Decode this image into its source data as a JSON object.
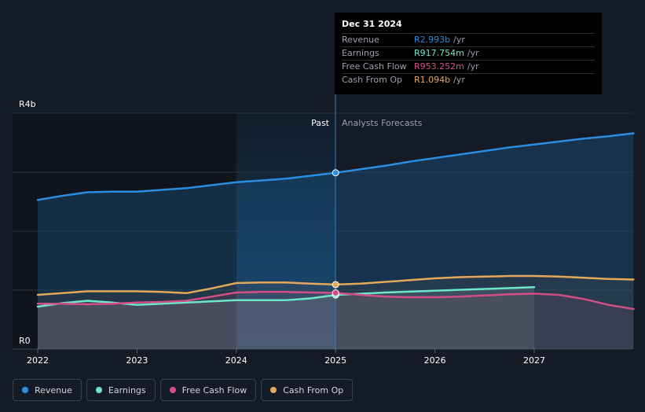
{
  "colors": {
    "revenue": "#2b8de0",
    "earnings": "#6ee6c8",
    "fcf": "#d24f86",
    "cfo": "#e4a85a"
  },
  "labels": {
    "y_top": "R4b",
    "y_bottom": "R0",
    "past": "Past",
    "forecast": "Analysts Forecasts"
  },
  "tooltip": {
    "date": "Dec 31 2024",
    "rows": [
      {
        "label": "Revenue",
        "value": "R2.993b",
        "unit": "/yr",
        "key": "revenue"
      },
      {
        "label": "Earnings",
        "value": "R917.754m",
        "unit": "/yr",
        "key": "earnings"
      },
      {
        "label": "Free Cash Flow",
        "value": "R953.252m",
        "unit": "/yr",
        "key": "fcf"
      },
      {
        "label": "Cash From Op",
        "value": "R1.094b",
        "unit": "/yr",
        "key": "cfo"
      }
    ]
  },
  "legend": [
    {
      "label": "Revenue",
      "key": "revenue"
    },
    {
      "label": "Earnings",
      "key": "earnings"
    },
    {
      "label": "Free Cash Flow",
      "key": "fcf"
    },
    {
      "label": "Cash From Op",
      "key": "cfo"
    }
  ],
  "chart_data": {
    "type": "area",
    "x_ticks": [
      "2022",
      "2023",
      "2024",
      "2025",
      "2026",
      "2027"
    ],
    "ylim": [
      0,
      4
    ],
    "y_unit": "R billion",
    "past_end": 2025.0,
    "highlight_start": 2024.0,
    "grid": true,
    "series": [
      {
        "name": "Revenue",
        "key": "revenue",
        "points": [
          [
            2022.0,
            2.53
          ],
          [
            2022.25,
            2.6
          ],
          [
            2022.5,
            2.66
          ],
          [
            2022.75,
            2.67
          ],
          [
            2023.0,
            2.67
          ],
          [
            2023.25,
            2.7
          ],
          [
            2023.5,
            2.73
          ],
          [
            2023.75,
            2.78
          ],
          [
            2024.0,
            2.83
          ],
          [
            2024.25,
            2.86
          ],
          [
            2024.5,
            2.89
          ],
          [
            2024.75,
            2.94
          ],
          [
            2025.0,
            2.99
          ],
          [
            2025.25,
            3.05
          ],
          [
            2025.5,
            3.11
          ],
          [
            2025.75,
            3.18
          ],
          [
            2026.0,
            3.24
          ],
          [
            2026.25,
            3.3
          ],
          [
            2026.5,
            3.36
          ],
          [
            2026.75,
            3.42
          ],
          [
            2027.0,
            3.47
          ],
          [
            2027.25,
            3.52
          ],
          [
            2027.5,
            3.57
          ],
          [
            2027.75,
            3.61
          ],
          [
            2028.0,
            3.66
          ]
        ]
      },
      {
        "name": "Earnings",
        "key": "earnings",
        "points": [
          [
            2022.0,
            0.72
          ],
          [
            2022.25,
            0.78
          ],
          [
            2022.5,
            0.82
          ],
          [
            2022.75,
            0.79
          ],
          [
            2023.0,
            0.75
          ],
          [
            2023.25,
            0.77
          ],
          [
            2023.5,
            0.79
          ],
          [
            2023.75,
            0.81
          ],
          [
            2024.0,
            0.83
          ],
          [
            2024.25,
            0.83
          ],
          [
            2024.5,
            0.83
          ],
          [
            2024.75,
            0.86
          ],
          [
            2025.0,
            0.918
          ],
          [
            2025.5,
            0.96
          ],
          [
            2026.0,
            0.99
          ],
          [
            2026.5,
            1.02
          ],
          [
            2027.0,
            1.05
          ]
        ]
      },
      {
        "name": "Free Cash Flow",
        "key": "fcf",
        "points": [
          [
            2022.0,
            0.77
          ],
          [
            2022.25,
            0.77
          ],
          [
            2022.5,
            0.76
          ],
          [
            2022.75,
            0.77
          ],
          [
            2023.0,
            0.79
          ],
          [
            2023.25,
            0.8
          ],
          [
            2023.5,
            0.82
          ],
          [
            2023.75,
            0.89
          ],
          [
            2024.0,
            0.96
          ],
          [
            2024.25,
            0.97
          ],
          [
            2024.5,
            0.97
          ],
          [
            2024.75,
            0.96
          ],
          [
            2025.0,
            0.953
          ],
          [
            2025.25,
            0.92
          ],
          [
            2025.5,
            0.89
          ],
          [
            2025.75,
            0.88
          ],
          [
            2026.0,
            0.88
          ],
          [
            2026.25,
            0.89
          ],
          [
            2026.5,
            0.91
          ],
          [
            2026.75,
            0.93
          ],
          [
            2027.0,
            0.94
          ],
          [
            2027.25,
            0.92
          ],
          [
            2027.5,
            0.85
          ],
          [
            2027.75,
            0.75
          ],
          [
            2028.0,
            0.68
          ]
        ]
      },
      {
        "name": "Cash From Op",
        "key": "cfo",
        "points": [
          [
            2022.0,
            0.92
          ],
          [
            2022.25,
            0.95
          ],
          [
            2022.5,
            0.98
          ],
          [
            2022.75,
            0.98
          ],
          [
            2023.0,
            0.98
          ],
          [
            2023.25,
            0.97
          ],
          [
            2023.5,
            0.95
          ],
          [
            2023.75,
            1.03
          ],
          [
            2024.0,
            1.12
          ],
          [
            2024.25,
            1.13
          ],
          [
            2024.5,
            1.13
          ],
          [
            2024.75,
            1.11
          ],
          [
            2025.0,
            1.094
          ],
          [
            2025.25,
            1.11
          ],
          [
            2025.5,
            1.14
          ],
          [
            2025.75,
            1.17
          ],
          [
            2026.0,
            1.2
          ],
          [
            2026.25,
            1.22
          ],
          [
            2026.5,
            1.23
          ],
          [
            2026.75,
            1.24
          ],
          [
            2027.0,
            1.24
          ],
          [
            2027.25,
            1.23
          ],
          [
            2027.5,
            1.21
          ],
          [
            2027.75,
            1.19
          ],
          [
            2028.0,
            1.18
          ]
        ]
      }
    ]
  }
}
